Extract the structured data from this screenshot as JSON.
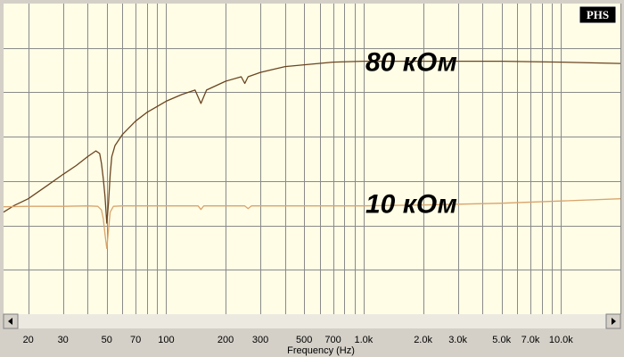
{
  "logo": {
    "text": "PHS",
    "bg": "#000000",
    "fg": "#ffffff"
  },
  "colors": {
    "plot_bg": "#fffde6",
    "grid": "#8a8a8a",
    "frame": "#d4d0c8",
    "scrollbar_track": "#ece9e0",
    "trace_80k": "#6b4420",
    "trace_10k": "#d9a46c"
  },
  "scrollbar": {
    "left_icon": "arrow-left-icon",
    "right_icon": "arrow-right-icon"
  },
  "chart_data": {
    "type": "line",
    "title": "",
    "xlabel": "Frequency (Hz)",
    "ylabel": "",
    "xscale": "log",
    "xlim": [
      15,
      20000
    ],
    "ylim": [
      0,
      7
    ],
    "grid": true,
    "x_tick_labels": [
      {
        "value": 20,
        "label": "20"
      },
      {
        "value": 30,
        "label": "30"
      },
      {
        "value": 50,
        "label": "50"
      },
      {
        "value": 70,
        "label": "70"
      },
      {
        "value": 100,
        "label": "100"
      },
      {
        "value": 200,
        "label": "200"
      },
      {
        "value": 300,
        "label": "300"
      },
      {
        "value": 500,
        "label": "500"
      },
      {
        "value": 700,
        "label": "700"
      },
      {
        "value": 1000,
        "label": "1.0k"
      },
      {
        "value": 2000,
        "label": "2.0k"
      },
      {
        "value": 3000,
        "label": "3.0k"
      },
      {
        "value": 5000,
        "label": "5.0k"
      },
      {
        "value": 7000,
        "label": "7.0k"
      },
      {
        "value": 10000,
        "label": "10.0k"
      }
    ],
    "x_grid": [
      20,
      30,
      40,
      50,
      60,
      70,
      80,
      90,
      100,
      200,
      300,
      400,
      500,
      600,
      700,
      800,
      900,
      1000,
      2000,
      3000,
      4000,
      5000,
      6000,
      7000,
      8000,
      9000,
      10000,
      20000
    ],
    "y_grid": [
      1,
      2,
      3,
      4,
      5,
      6
    ],
    "annotations": [
      {
        "text": "80 кОм",
        "x": 2200,
        "y": 5.7
      },
      {
        "text": "10 кОм",
        "x": 2200,
        "y": 2.5
      }
    ],
    "series": [
      {
        "name": "80 кОм",
        "color": "#6b4420",
        "points": [
          [
            15,
            2.3
          ],
          [
            17,
            2.45
          ],
          [
            20,
            2.6
          ],
          [
            25,
            2.9
          ],
          [
            30,
            3.15
          ],
          [
            35,
            3.35
          ],
          [
            40,
            3.55
          ],
          [
            44,
            3.68
          ],
          [
            46,
            3.62
          ],
          [
            47,
            3.4
          ],
          [
            48,
            3.05
          ],
          [
            49,
            2.65
          ],
          [
            50,
            2.05
          ],
          [
            51,
            2.5
          ],
          [
            52,
            3.15
          ],
          [
            53,
            3.55
          ],
          [
            55,
            3.8
          ],
          [
            60,
            4.05
          ],
          [
            70,
            4.35
          ],
          [
            80,
            4.55
          ],
          [
            90,
            4.68
          ],
          [
            100,
            4.8
          ],
          [
            120,
            4.95
          ],
          [
            140,
            5.05
          ],
          [
            150,
            4.75
          ],
          [
            160,
            5.05
          ],
          [
            200,
            5.25
          ],
          [
            240,
            5.35
          ],
          [
            250,
            5.2
          ],
          [
            260,
            5.35
          ],
          [
            300,
            5.45
          ],
          [
            350,
            5.52
          ],
          [
            400,
            5.58
          ],
          [
            500,
            5.62
          ],
          [
            700,
            5.68
          ],
          [
            1000,
            5.7
          ],
          [
            2000,
            5.7
          ],
          [
            5000,
            5.7
          ],
          [
            10000,
            5.68
          ],
          [
            20000,
            5.65
          ]
        ]
      },
      {
        "name": "10 кОм",
        "color": "#d9a46c",
        "points": [
          [
            15,
            2.42
          ],
          [
            20,
            2.43
          ],
          [
            30,
            2.43
          ],
          [
            40,
            2.44
          ],
          [
            45,
            2.43
          ],
          [
            47,
            2.35
          ],
          [
            48,
            2.15
          ],
          [
            49,
            1.8
          ],
          [
            50,
            1.48
          ],
          [
            51,
            1.9
          ],
          [
            52,
            2.3
          ],
          [
            54,
            2.43
          ],
          [
            60,
            2.44
          ],
          [
            100,
            2.44
          ],
          [
            145,
            2.44
          ],
          [
            150,
            2.36
          ],
          [
            155,
            2.44
          ],
          [
            250,
            2.44
          ],
          [
            260,
            2.38
          ],
          [
            270,
            2.44
          ],
          [
            500,
            2.44
          ],
          [
            1000,
            2.44
          ],
          [
            2000,
            2.46
          ],
          [
            5000,
            2.5
          ],
          [
            10000,
            2.55
          ],
          [
            20000,
            2.6
          ]
        ]
      }
    ]
  }
}
